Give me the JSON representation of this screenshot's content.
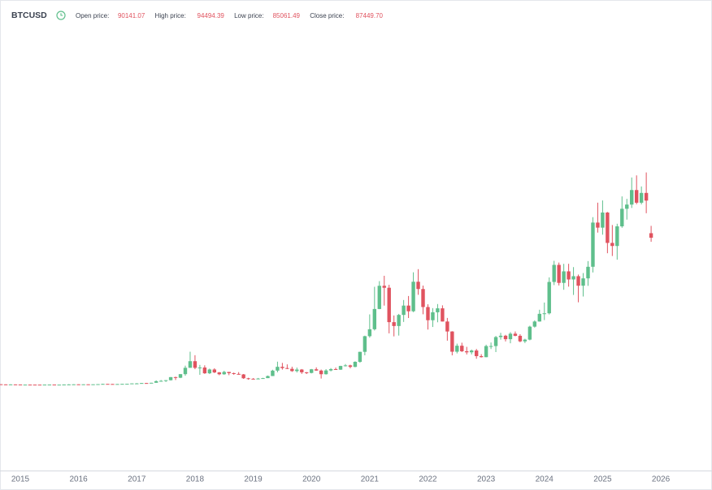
{
  "chart_data": {
    "type": "candlestick",
    "title": "BTCUSD",
    "ohlc_legend": [
      {
        "label": "Open price:",
        "value": "90141.07"
      },
      {
        "label": "High price:",
        "value": "94494.39"
      },
      {
        "label": "Low price:",
        "value": "85061.49"
      },
      {
        "label": "Close price:",
        "value": "87449.70"
      }
    ],
    "up_color": "#5fbf8c",
    "down_color": "#e0535f",
    "ylim": [
      -50750,
      214130
    ],
    "categories": [
      null,
      null,
      null,
      null,
      "2015",
      null,
      null,
      null,
      null,
      null,
      null,
      null,
      null,
      null,
      null,
      null,
      "2016",
      null,
      null,
      null,
      null,
      null,
      null,
      null,
      null,
      null,
      null,
      null,
      "2017",
      null,
      null,
      null,
      null,
      null,
      null,
      null,
      null,
      null,
      null,
      null,
      "2018",
      null,
      null,
      null,
      null,
      null,
      null,
      null,
      null,
      null,
      null,
      null,
      "2019",
      null,
      null,
      null,
      null,
      null,
      null,
      null,
      null,
      null,
      null,
      null,
      "2020",
      null,
      null,
      null,
      null,
      null,
      null,
      null,
      null,
      null,
      null,
      null,
      "2021",
      null,
      null,
      null,
      null,
      null,
      null,
      null,
      null,
      null,
      null,
      null,
      "2022",
      null,
      null,
      null,
      null,
      null,
      null,
      null,
      null,
      null,
      null,
      null,
      "2023",
      null,
      null,
      null,
      null,
      null,
      null,
      null,
      null,
      null,
      null,
      null,
      "2024",
      null,
      null,
      null,
      null,
      null,
      null,
      null,
      null,
      null,
      null,
      null,
      "2025",
      null,
      null,
      null,
      null,
      null,
      null,
      null,
      null,
      null,
      null,
      null,
      "2026"
    ],
    "open": [
      477,
      386,
      338,
      378,
      320,
      217,
      254,
      244,
      236,
      230,
      263,
      284,
      230,
      236,
      314,
      377,
      430,
      369,
      437,
      416,
      448,
      531,
      673,
      624,
      575,
      609,
      698,
      742,
      964,
      970,
      1190,
      1080,
      1348,
      2300,
      2480,
      2875,
      4703,
      4338,
      6468,
      10233,
      14156,
      10221,
      10397,
      6973,
      9240,
      7494,
      6404,
      7780,
      7037,
      6625,
      6317,
      4017,
      3742,
      3457,
      3854,
      4105,
      5350,
      8574,
      10817,
      10085,
      9630,
      8293,
      9199,
      7569,
      7193,
      9350,
      8599,
      6438,
      8658,
      9461,
      9137,
      11323,
      11680,
      10784,
      13781,
      19714,
      29001,
      33114,
      45137,
      58918,
      57750,
      37332,
      35041,
      41626,
      47166,
      43790,
      61318,
      57005,
      46306,
      38483,
      43193,
      45538,
      37714,
      31792,
      19784,
      23336,
      20050,
      19432,
      20496,
      17168,
      16548,
      23139,
      23147,
      28478,
      29268,
      27219,
      30477,
      29230,
      25940,
      26967,
      34667,
      37713,
      42265,
      42582,
      61198,
      71333,
      60637,
      67491,
      62678,
      64619,
      58970,
      63329,
      70215,
      96449,
      93429,
      102405,
      84373,
      82548,
      94207,
      104638,
      107135,
      115758,
      108236,
      114049,
      90141.07,
      null,
      null
    ],
    "high": [
      477,
      412,
      457,
      384,
      320,
      263,
      300,
      261,
      247,
      269,
      318,
      285,
      247,
      334,
      503,
      469,
      462,
      448,
      438,
      467,
      551,
      780,
      703,
      628,
      629,
      720,
      755,
      975,
      1152,
      1216,
      1290,
      1350,
      2760,
      2980,
      2916,
      4736,
      4975,
      6470,
      11517,
      19783,
      17712,
      11958,
      11711,
      9745,
      9964,
      7754,
      8474,
      7780,
      7410,
      7680,
      6553,
      4309,
      4109,
      4210,
      4296,
      5642,
      9074,
      13880,
      13147,
      12273,
      10898,
      10370,
      9505,
      7743,
      9553,
      10500,
      9188,
      9440,
      10067,
      10380,
      11434,
      12468,
      12086,
      14094,
      19749,
      29301,
      41946,
      58330,
      61683,
      64863,
      59519,
      41295,
      42236,
      50482,
      52853,
      66930,
      68789,
      59041,
      47944,
      45661,
      48086,
      47313,
      39845,
      31957,
      24572,
      25135,
      22673,
      21085,
      21446,
      18318,
      23955,
      25250,
      29159,
      31005,
      29820,
      31390,
      31804,
      30176,
      27483,
      35198,
      38415,
      44700,
      48969,
      63913,
      73750,
      72715,
      71947,
      71980,
      70016,
      65593,
      66480,
      73577,
      99655,
      108268,
      109588,
      102750,
      95000,
      95758,
      111980,
      110530,
      123218,
      124457,
      117900,
      126200,
      94494.39,
      null,
      null
    ],
    "low": [
      366,
      289,
      313,
      310,
      166,
      212,
      236,
      214,
      225,
      221,
      253,
      199,
      225,
      236,
      298,
      350,
      354,
      363,
      394,
      412,
      436,
      516,
      605,
      534,
      568,
      607,
      681,
      736,
      755,
      930,
      891,
      1069,
      1348,
      2230,
      1837,
      2671,
      2980,
      4110,
      5519,
      10233,
      9402,
      6048,
      6630,
      6526,
      7090,
      5826,
      6073,
      5880,
      6123,
      6205,
      3652,
      3156,
      3400,
      3400,
      3734,
      4096,
      5332,
      7564,
      9163,
      9467,
      7830,
      7446,
      6617,
      6540,
      6914,
      8471,
      3858,
      6202,
      8117,
      8975,
      8977,
      11010,
      9916,
      10545,
      13243,
      17650,
      28130,
      32385,
      45047,
      47159,
      30681,
      28893,
      29360,
      37458,
      39787,
      43291,
      53569,
      42000,
      32933,
      34459,
      37260,
      37697,
      26350,
      17622,
      18782,
      19600,
      18153,
      18190,
      15599,
      16333,
      16521,
      21351,
      19569,
      26942,
      25871,
      24797,
      28934,
      25409,
      24930,
      26558,
      34097,
      37629,
      38555,
      41884,
      59323,
      59120,
      56555,
      58402,
      53485,
      49121,
      52550,
      58895,
      66835,
      90500,
      89256,
      78248,
      76606,
      74420,
      93346,
      98200,
      105127,
      107350,
      107270,
      102000,
      85061.49,
      null,
      null
    ],
    "close": [
      386,
      338,
      378,
      320,
      217,
      254,
      244,
      236,
      230,
      263,
      284,
      230,
      236,
      314,
      377,
      430,
      369,
      437,
      416,
      448,
      531,
      673,
      624,
      575,
      609,
      698,
      742,
      964,
      970,
      1190,
      1080,
      1348,
      2300,
      2480,
      2875,
      4703,
      4338,
      6468,
      10233,
      14156,
      10221,
      10397,
      6973,
      9240,
      7494,
      6404,
      7780,
      7037,
      6625,
      6317,
      4017,
      3742,
      3457,
      3854,
      4105,
      5350,
      8574,
      10817,
      10085,
      9630,
      8293,
      9199,
      7569,
      7193,
      9350,
      8599,
      6438,
      8658,
      9461,
      9137,
      11323,
      11680,
      10784,
      13781,
      19714,
      29001,
      33114,
      45137,
      58918,
      57750,
      37332,
      35041,
      41626,
      47166,
      43790,
      61318,
      57005,
      46306,
      38483,
      43193,
      45538,
      37714,
      31792,
      19784,
      23336,
      20050,
      19432,
      20496,
      17168,
      16548,
      23139,
      23147,
      28478,
      29268,
      27219,
      30477,
      29230,
      25940,
      26967,
      34667,
      37713,
      42265,
      42582,
      61198,
      71333,
      60637,
      67491,
      62678,
      64619,
      58970,
      63329,
      70215,
      96449,
      93429,
      102405,
      84373,
      82548,
      94207,
      104638,
      107135,
      115758,
      108236,
      114049,
      109500,
      87449.7,
      null,
      null
    ]
  }
}
